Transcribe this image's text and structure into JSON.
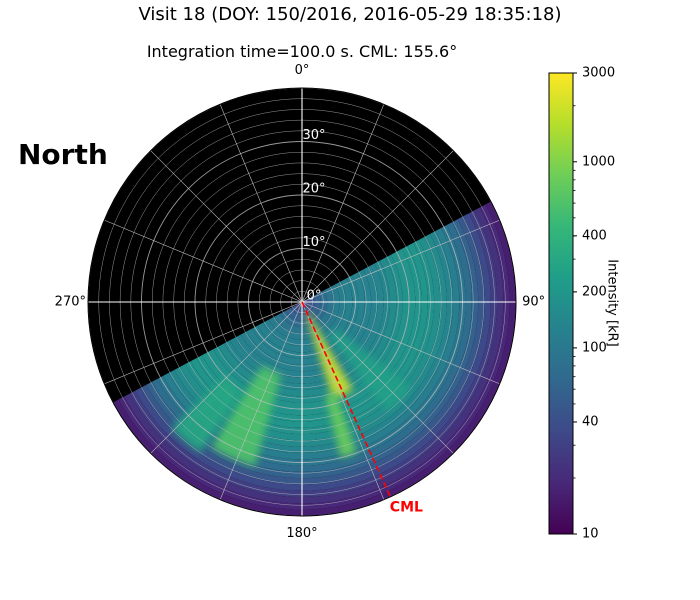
{
  "figure": {
    "title": "Visit 18 (DOY: 150/2016, 2016-05-29 18:35:18)",
    "subtitle": "Integration time=100.0 s. CML: 155.6°",
    "hemisphere_label": "North"
  },
  "chart_data": {
    "type": "heatmap",
    "projection": "polar",
    "hemisphere": "North",
    "cml_deg": 155.6,
    "cml_label": "CML",
    "cml_color": "#ff0000",
    "background_color": "#000000",
    "grid": true,
    "theta_ticks": [
      {
        "deg": 0,
        "label": "0°"
      },
      {
        "deg": 90,
        "label": "90°"
      },
      {
        "deg": 180,
        "label": "180°"
      },
      {
        "deg": 270,
        "label": "270°"
      }
    ],
    "r_ticks": [
      {
        "value": 0,
        "label": "0°"
      },
      {
        "value": 10,
        "label": "10°"
      },
      {
        "value": 20,
        "label": "20°"
      },
      {
        "value": 30,
        "label": "30°"
      }
    ],
    "r_max": 40,
    "colorbar": {
      "label": "Intensity [kR]",
      "scale": "log",
      "min": 10,
      "max": 3000,
      "ticks": [
        {
          "value": 10,
          "label": "10"
        },
        {
          "value": 40,
          "label": "40"
        },
        {
          "value": 100,
          "label": "100"
        },
        {
          "value": 200,
          "label": "200"
        },
        {
          "value": 400,
          "label": "400"
        },
        {
          "value": 1000,
          "label": "1000"
        },
        {
          "value": 3000,
          "label": "3000"
        }
      ],
      "colormap": "viridis",
      "colormap_stops": [
        "#440154",
        "#482878",
        "#3e4989",
        "#31688e",
        "#26828e",
        "#1f9e89",
        "#35b779",
        "#6ece58",
        "#b5de2b",
        "#fde725"
      ]
    },
    "coverage_longitude_deg": [
      62,
      242
    ],
    "emission_arcs": [
      {
        "theta_start": 150,
        "theta_end": 162,
        "r_start": 2,
        "r_end": 19,
        "intensity": 2000
      },
      {
        "theta_start": 160,
        "theta_end": 166,
        "r_start": 18,
        "r_end": 30,
        "intensity": 800
      },
      {
        "theta_start": 196,
        "theta_end": 212,
        "r_start": 14,
        "r_end": 32,
        "intensity": 600
      },
      {
        "theta_start": 214,
        "theta_end": 226,
        "r_start": 20,
        "r_end": 34,
        "intensity": 300
      },
      {
        "theta_start": 128,
        "theta_end": 142,
        "r_start": 8,
        "r_end": 26,
        "intensity": 250
      }
    ]
  }
}
